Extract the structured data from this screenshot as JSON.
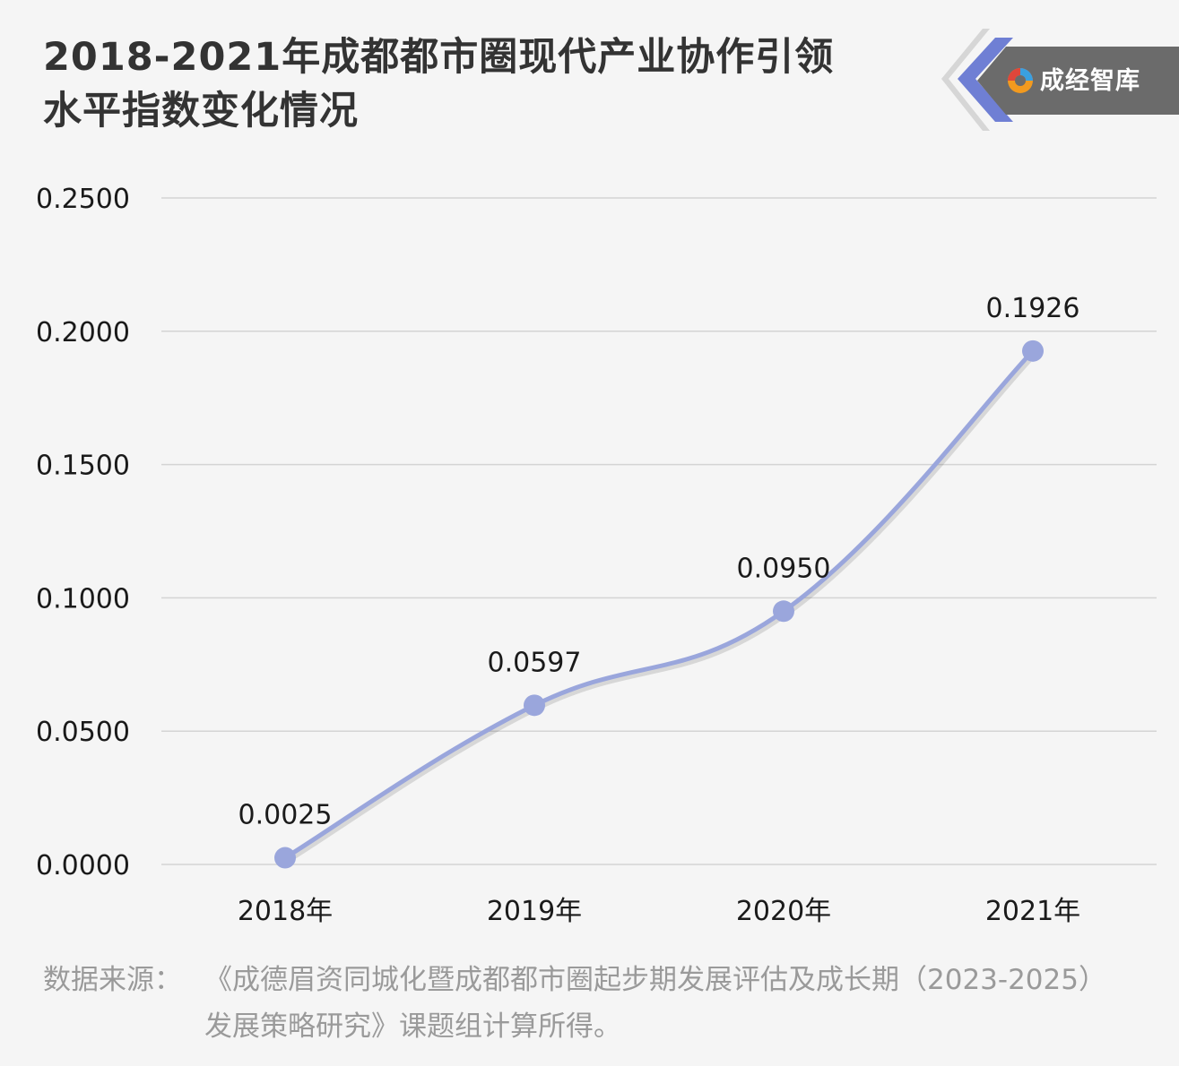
{
  "title": {
    "line1": "2018-2021年成都都市圈现代产业协作引领",
    "line2": "水平指数变化情况"
  },
  "logo": {
    "text": "成经智库",
    "colors": {
      "panel": "#6b6b6b",
      "accent": "#6f7fd4",
      "chevron": "#cfcfcf"
    }
  },
  "source": {
    "label": "数据来源：",
    "text": "《成德眉资同城化暨成都都市圈起步期发展评估及成长期（2023-2025）发展策略研究》课题组计算所得。"
  },
  "chart_data": {
    "type": "line",
    "categories": [
      "2018年",
      "2019年",
      "2020年",
      "2021年"
    ],
    "series": [
      {
        "values": [
          0.0025,
          0.0597,
          0.095,
          0.1926
        ],
        "labels": [
          "0.0025",
          "0.0597",
          "0.0950",
          "0.1926"
        ]
      }
    ],
    "yticks": [
      "0.0000",
      "0.0500",
      "0.1000",
      "0.1500",
      "0.2000",
      "0.2500"
    ],
    "ylim": [
      0,
      0.25
    ],
    "grid": true,
    "smooth": true,
    "colors": {
      "line": "#9aa6dc",
      "grid": "#d4d4d4",
      "text": "#1a1a1a"
    }
  }
}
